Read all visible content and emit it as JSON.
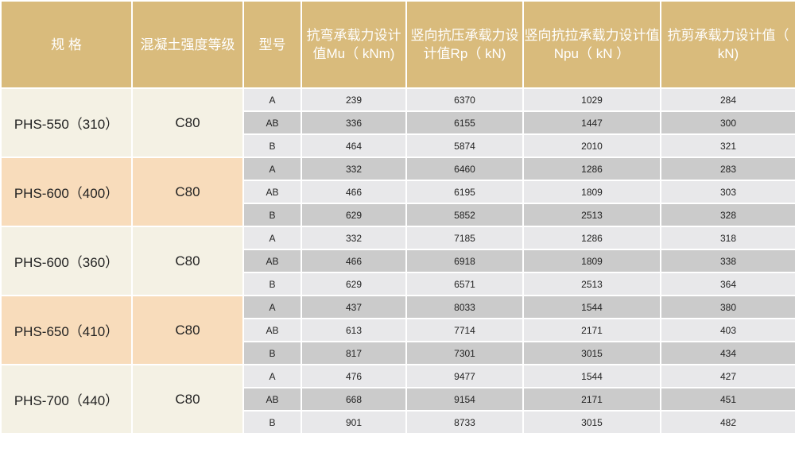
{
  "headers": [
    "规 格",
    "混凝土强度等级",
    "型号",
    "抗弯承载力设计值Mu（ kNm)",
    "竖向抗压承载力设计值Rp（ kN)",
    "竖向抗拉承载力设计值Npu（ kN ）",
    "抗剪承载力设计值（ kN)"
  ],
  "colors": {
    "header": "#d9bb7c",
    "group_light": "#f4f1e4",
    "group_peach": "#f8dcbb",
    "row_light": "#e8e8ea",
    "row_dark": "#cbcbcb"
  },
  "groups": [
    {
      "spec": "PHS-550（310）",
      "grade": "C80",
      "rows": [
        {
          "type": "A",
          "mu": "239",
          "rp": "6370",
          "npu": "1029",
          "shear": "284"
        },
        {
          "type": "AB",
          "mu": "336",
          "rp": "6155",
          "npu": "1447",
          "shear": "300"
        },
        {
          "type": "B",
          "mu": "464",
          "rp": "5874",
          "npu": "2010",
          "shear": "321"
        }
      ]
    },
    {
      "spec": "PHS-600（400）",
      "grade": "C80",
      "rows": [
        {
          "type": "A",
          "mu": "332",
          "rp": "6460",
          "npu": "1286",
          "shear": "283"
        },
        {
          "type": "AB",
          "mu": "466",
          "rp": "6195",
          "npu": "1809",
          "shear": "303"
        },
        {
          "type": "B",
          "mu": "629",
          "rp": "5852",
          "npu": "2513",
          "shear": "328"
        }
      ]
    },
    {
      "spec": "PHS-600（360）",
      "grade": "C80",
      "rows": [
        {
          "type": "A",
          "mu": "332",
          "rp": "7185",
          "npu": "1286",
          "shear": "318"
        },
        {
          "type": "AB",
          "mu": "466",
          "rp": "6918",
          "npu": "1809",
          "shear": "338"
        },
        {
          "type": "B",
          "mu": "629",
          "rp": "6571",
          "npu": "2513",
          "shear": "364"
        }
      ]
    },
    {
      "spec": "PHS-650（410）",
      "grade": "C80",
      "rows": [
        {
          "type": "A",
          "mu": "437",
          "rp": "8033",
          "npu": "1544",
          "shear": "380"
        },
        {
          "type": "AB",
          "mu": "613",
          "rp": "7714",
          "npu": "2171",
          "shear": "403"
        },
        {
          "type": "B",
          "mu": "817",
          "rp": "7301",
          "npu": "3015",
          "shear": "434"
        }
      ]
    },
    {
      "spec": "PHS-700（440）",
      "grade": "C80",
      "rows": [
        {
          "type": "A",
          "mu": "476",
          "rp": "9477",
          "npu": "1544",
          "shear": "427"
        },
        {
          "type": "AB",
          "mu": "668",
          "rp": "9154",
          "npu": "2171",
          "shear": "451"
        },
        {
          "type": "B",
          "mu": "901",
          "rp": "8733",
          "npu": "3015",
          "shear": "482"
        }
      ]
    }
  ]
}
